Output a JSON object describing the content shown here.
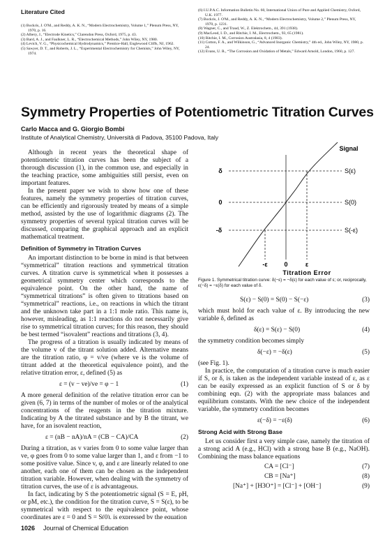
{
  "section_heading": "Literature Cited",
  "references": [
    "(1) Bockris, J. O'M., and Reddy, A. K. N., “Modern Electrochemistry, Volume 1,” Plenum Press, NY, 1970, p. 16.",
    "(2) Albery, J., “Electrode Kinetics,” Clarendon Press, Oxford, 1975, p. 43.",
    "(3) Bard, A. J., and Faulkner, L. R., “Electrochemical Methods,” John Wiley, NY, 1980.",
    "(4) Levich, V. G., “Physicochemical Hydrodynamics,” Prentice-Hall, Englewood Cliffs, NJ, 1962.",
    "(5) Sawyer, D. T., and Roberts, J. L., “Experimental Electrochemistry for Chemists,” John Wiley, NY, 1974.",
    "(6) I.U.P.A.C. Information Bulletin No. 60, International Union of Pure and Applied Chemistry, Oxford, U.K. 1977.",
    "(7) Bockris, J. O'M., and Reddy, A. K. N., “Modern Electrochemistry, Volume 2,” Plenum Press, NY, 1970, p. 1231.",
    "(8) Wagner, C., and Traud, W., Z. Elektrochem., 44, 391 (1938).",
    "(9) MacLeod, I. D., and Ritchie, I. M., Electrochem., 93, 65 (1981).",
    "(10) Ritchie, I. M., Corrosion Australasia, 8, 4 (1983).",
    "(11) Cotton, F. A., and Wilkinson, G., “Advanced Inorganic Chemistry,” 4th ed., John Wiley, NY, 1980, p. 24.",
    "(12) Evans, U. R., “The Corrosion and Oxidation of Metals,” Edward Arnold, London, 1960, p. 127."
  ],
  "title": "Symmetry Properties of Potentiometric Titration Curves",
  "authors": "Carlo Macca and G. Giorgio Bombi",
  "affiliation": "Institute of Analytical Chemistry, Università di Padova, 35100 Padova, Italy",
  "paragraphs": [
    "Although in recent years the theoretical shape of potentiometric titration curves has been the subject of a thorough discussion (1), in the common use, and especially in the teaching practice, some ambiguities still persist, even on important features.",
    "In the present paper we wish to show how one of these features, namely the symmetry properties of titration curves, can be efficiently and rigorously treated by means of a simple method, assisted by the use of logarithmic diagrams (2). The symmetry properties of several typical titration curves will be discussed, comparing the graphical approach and an explicit mathematical treatment.",
    "An important distinction to be borne in mind is that between “symmetrical” titration reactions and symmetrical titration curves. A titration curve is symmetrical when it possesses a geometrical symmetry center which corresponds to the equivalence point. On the other hand, the name of “symmetrical titrations” is often given to titrations based on “symmetrical” reactions, i.e., on reactions in which the titrant and the unknown take part in a 1:1 mole ratio. This name is, however, misleading, as 1:1 reactions do not necessarily give rise to symmetrical titration curves; for this reason, they should be best termed “isovalent” reactions and titrations (3, 4).",
    "The progress of a titration is usually indicated by means of the volume v of the titrant solution added. Alternative means are the titration ratio, φ = v/ve (where ve is the volume of titrant added at the theoretical equivalence point), and the relative titration error, ε, defined (5) as",
    "A more general definition of the relative titration error can be given (6, 7) in terms of the number of moles or of the analytical concentrations of the reagents in the titration mixture. Indicating by A the titrated substance and by B the titrant, we have, for an isovalent reaction,",
    "During a titration, as v varies from 0 to some value larger than ve, φ goes from 0 to some value larger than 1, and ε from −1 to some positive value. Since v, φ, and ε are linearly related to one another, each one of them can be chosen as the independent titration variable. However, when dealing with the symmetry of titration curves, the use of ε is advantageous.",
    "In fact, indicating by S the potentiometric signal (S = E, pH, or pM, etc.), the condition for the titration curve, S = S(ε), to be symmetrical with respect to the equivalence point, whose coordinates are ε = 0 and S = S(0), is expressed by the equation",
    "which must hold for each value of ε. By introducing the new variable δ, defined as",
    "the symmetry condition becomes simply",
    "(see Fig. 1).",
    "In practice, the computation of a titration curve is much easier if S, or δ, is taken as the independent variable instead of ε, as ε can be easily expressed as an explicit function of S or δ by combining eqn. (2) with the appropriate mass balances and equilibrium constants. With the new choice of the independent variable, the symmetry condition becomes",
    "Let us consider first a very simple case, namely the titration of a strong acid A (e.g., HCl) with a strong base B (e.g., NaOH). Combining the mass balance equations"
  ],
  "headings": [
    "Definition of Symmetry in Titration Curves",
    "Strong Acid with Strong Base"
  ],
  "equations": [
    {
      "text": "ε = (v − ve)/ve = φ − 1",
      "number": "(1)"
    },
    {
      "text": "ε = (nB − nA)/nA = (CB − CA)/CA",
      "number": "(2)"
    },
    {
      "text": "S(ε) − S(0) = S(0) − S(−ε)",
      "number": "(3)"
    },
    {
      "text": "δ(ε) = S(ε) − S(0)",
      "number": "(4)"
    },
    {
      "text": "δ(−ε) = −δ(ε)",
      "number": "(5)"
    },
    {
      "text": "ε(−δ) = −ε(δ)",
      "number": "(6)"
    },
    {
      "text": "CA = [Cl⁻]",
      "number": "(7)"
    },
    {
      "text": "CB = [Na⁺]",
      "number": "(8)"
    },
    {
      "text": "[Na⁺] + [H3O⁺] = [Cl⁻] + [OH⁻]",
      "number": "(9)"
    }
  ],
  "figure": {
    "y_axis_title": "Signal",
    "x_axis_title": "Titration Error",
    "y_labels": [
      "δ",
      "0",
      "-δ"
    ],
    "curve_labels": [
      "S(ε)",
      "S(0)",
      "S(-ε)"
    ],
    "x_labels": [
      "-ε",
      "0",
      "ε"
    ],
    "caption": "Figure 1. Symmetrical titration curve: δ(−ε) = −δ(ε) for each value of ε; or, reciprocally, ε(−δ) = −ε(δ) for each value of δ."
  },
  "footer": {
    "page": "1026",
    "journal": "Journal of Chemical Education"
  }
}
